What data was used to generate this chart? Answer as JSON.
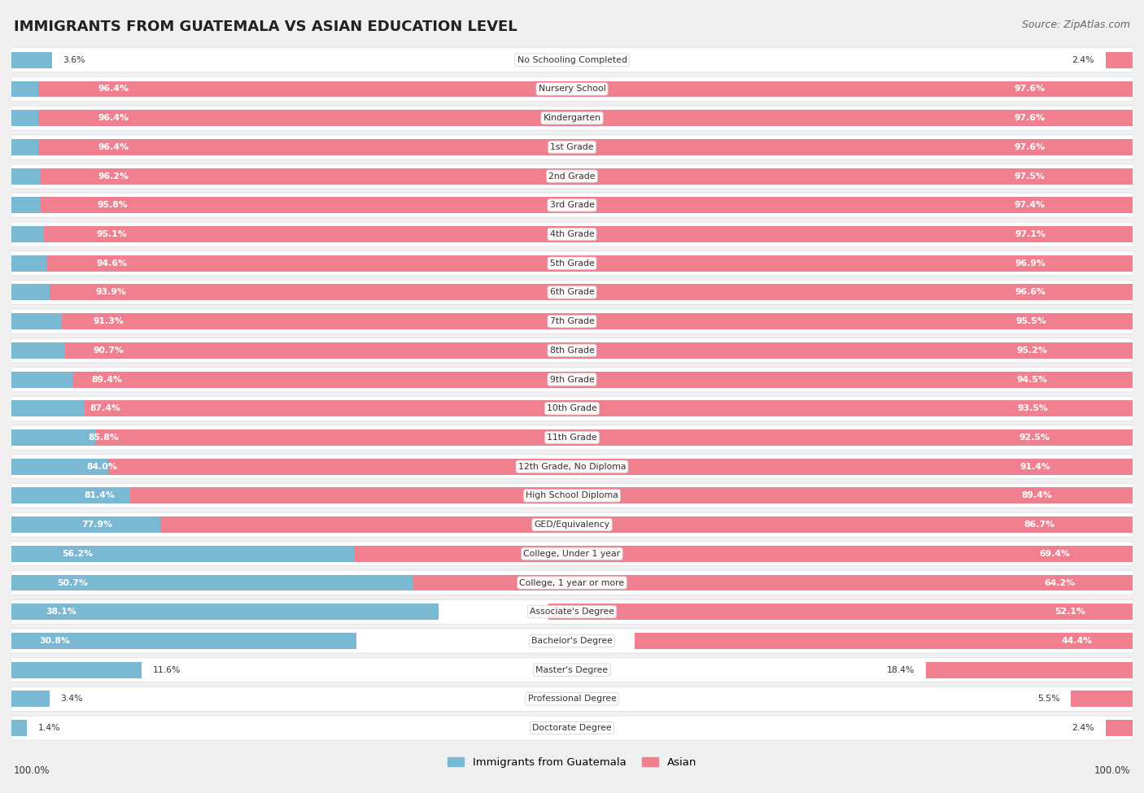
{
  "title": "IMMIGRANTS FROM GUATEMALA VS ASIAN EDUCATION LEVEL",
  "source": "Source: ZipAtlas.com",
  "categories": [
    "No Schooling Completed",
    "Nursery School",
    "Kindergarten",
    "1st Grade",
    "2nd Grade",
    "3rd Grade",
    "4th Grade",
    "5th Grade",
    "6th Grade",
    "7th Grade",
    "8th Grade",
    "9th Grade",
    "10th Grade",
    "11th Grade",
    "12th Grade, No Diploma",
    "High School Diploma",
    "GED/Equivalency",
    "College, Under 1 year",
    "College, 1 year or more",
    "Associate's Degree",
    "Bachelor's Degree",
    "Master's Degree",
    "Professional Degree",
    "Doctorate Degree"
  ],
  "guatemala_values": [
    3.6,
    96.4,
    96.4,
    96.4,
    96.2,
    95.8,
    95.1,
    94.6,
    93.9,
    91.3,
    90.7,
    89.4,
    87.4,
    85.8,
    84.0,
    81.4,
    77.9,
    56.2,
    50.7,
    38.1,
    30.8,
    11.6,
    3.4,
    1.4
  ],
  "asian_values": [
    2.4,
    97.6,
    97.6,
    97.6,
    97.5,
    97.4,
    97.1,
    96.9,
    96.6,
    95.5,
    95.2,
    94.5,
    93.5,
    92.5,
    91.4,
    89.4,
    86.7,
    69.4,
    64.2,
    52.1,
    44.4,
    18.4,
    5.5,
    2.4
  ],
  "guatemala_color": "#7ab8d4",
  "asian_color": "#f08090",
  "background_color": "#f0f0f0",
  "bar_background": "#ffffff",
  "row_bg_alt": "#f8f8f8",
  "legend_guatemala": "Immigrants from Guatemala",
  "legend_asian": "Asian",
  "label_threshold": 20.0
}
